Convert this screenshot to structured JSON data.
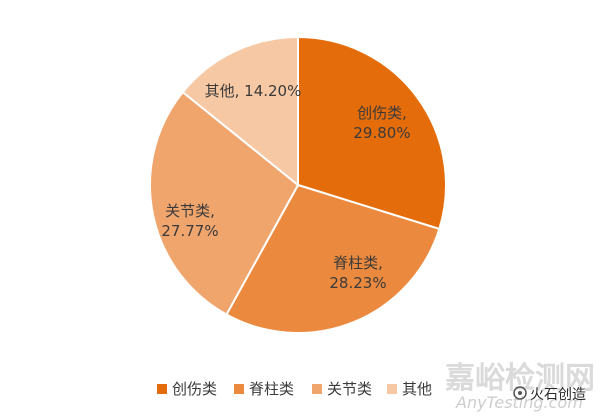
{
  "chart_data": {
    "type": "pie",
    "slices": [
      {
        "name": "创伤类",
        "value": 29.8,
        "label_line1": "创伤类,",
        "label_line2": "29.80%",
        "color": "#E46C0A"
      },
      {
        "name": "脊柱类",
        "value": 28.23,
        "label_line1": "脊柱类,",
        "label_line2": "28.23%",
        "color": "#EB8A3F"
      },
      {
        "name": "关节类",
        "value": 27.77,
        "label_line1": "关节类,",
        "label_line2": "27.77%",
        "color": "#F0A56D"
      },
      {
        "name": "其他",
        "value": 14.2,
        "label_line1": "其他, 14.20%",
        "label_line2": "",
        "color": "#F6C8A3"
      }
    ],
    "legend_position": "bottom"
  },
  "watermarks": {
    "site_cn": "嘉峪检测网",
    "site_en": "AnyTesting.com",
    "source": "火石创造"
  }
}
